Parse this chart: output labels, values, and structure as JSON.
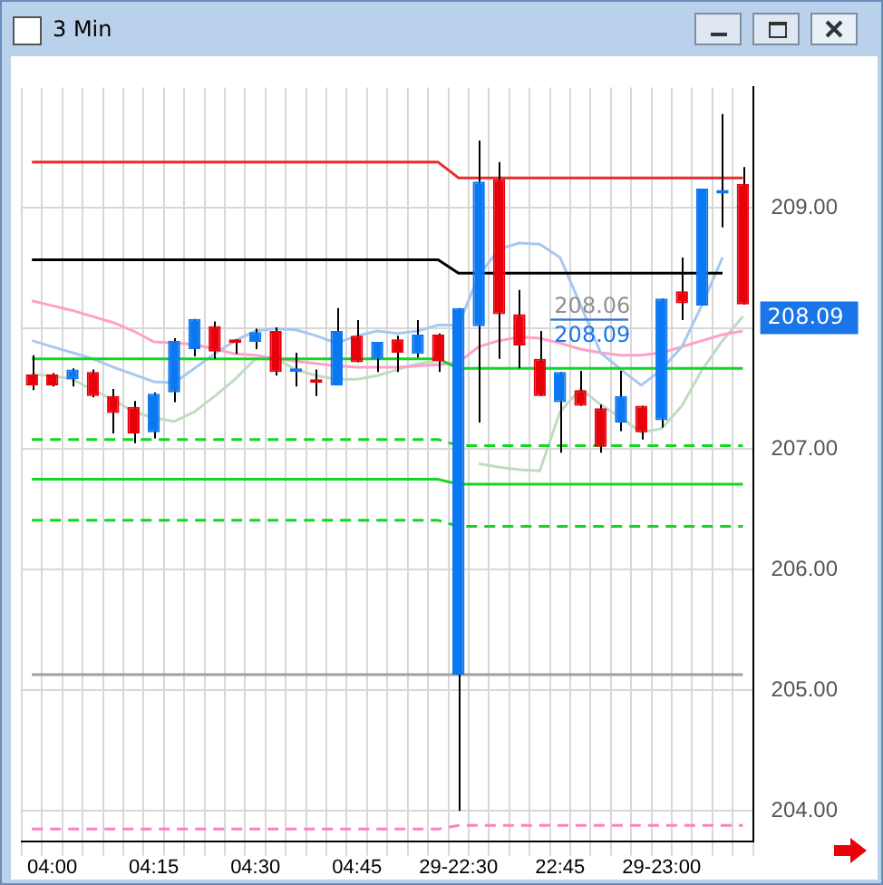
{
  "chart_data": {
    "type": "candlestick",
    "title": "3 Min",
    "categories": [
      null,
      "04:00",
      null,
      null,
      null,
      null,
      "04:15",
      null,
      null,
      null,
      null,
      "04:30",
      null,
      null,
      null,
      null,
      "04:45",
      null,
      null,
      null,
      null,
      "29-22:30",
      null,
      null,
      null,
      null,
      "22:45",
      null,
      null,
      null,
      null,
      "29-23:00",
      null,
      null,
      null,
      null
    ],
    "ohlc": [
      [
        207.62,
        207.78,
        207.49,
        207.53
      ],
      [
        207.62,
        207.63,
        207.52,
        207.53
      ],
      [
        207.58,
        207.67,
        207.52,
        207.66
      ],
      [
        207.64,
        207.66,
        207.43,
        207.44
      ],
      [
        207.44,
        207.5,
        207.13,
        207.3
      ],
      [
        207.35,
        207.4,
        207.05,
        207.13
      ],
      [
        207.14,
        207.47,
        207.09,
        207.46
      ],
      [
        207.47,
        207.92,
        207.39,
        207.9
      ],
      [
        207.83,
        208.08,
        207.77,
        208.08
      ],
      [
        208.02,
        208.06,
        207.75,
        207.81
      ],
      [
        207.89,
        207.91,
        207.79,
        207.88
      ],
      [
        207.89,
        208.0,
        207.83,
        207.97
      ],
      [
        207.98,
        208.01,
        207.61,
        207.64
      ],
      [
        207.64,
        207.8,
        207.52,
        207.67
      ],
      [
        207.58,
        207.66,
        207.44,
        207.55
      ],
      [
        207.53,
        208.17,
        207.53,
        207.98
      ],
      [
        207.94,
        208.07,
        207.72,
        207.72
      ],
      [
        207.75,
        207.89,
        207.64,
        207.89
      ],
      [
        207.91,
        207.94,
        207.64,
        207.8
      ],
      [
        207.79,
        208.07,
        207.76,
        207.95
      ],
      [
        207.95,
        207.96,
        207.64,
        207.73
      ],
      [
        205.13,
        208.17,
        204.0,
        208.17
      ],
      [
        208.02,
        209.56,
        207.22,
        209.22
      ],
      [
        209.24,
        209.38,
        207.75,
        208.12
      ],
      [
        208.12,
        208.32,
        207.67,
        207.86
      ],
      [
        207.75,
        207.98,
        207.44,
        207.44
      ],
      [
        207.39,
        207.64,
        206.97,
        207.64
      ],
      [
        207.49,
        207.65,
        207.36,
        207.36
      ],
      [
        207.34,
        207.37,
        206.97,
        207.02
      ],
      [
        207.22,
        207.65,
        207.15,
        207.44
      ],
      [
        207.36,
        207.36,
        207.08,
        207.14
      ],
      [
        207.24,
        208.25,
        207.18,
        208.25
      ],
      [
        208.31,
        208.59,
        208.07,
        208.21
      ],
      [
        208.19,
        209.16,
        208.19,
        209.16
      ],
      [
        209.12,
        209.78,
        208.84,
        209.15
      ],
      [
        209.2,
        209.34,
        208.2,
        208.2
      ]
    ],
    "colors": [
      "#e8000b",
      "#e8000b",
      "#0a78f0",
      "#e8000b",
      "#e8000b",
      "#e8000b",
      "#0a78f0",
      "#0a78f0",
      "#0a78f0",
      "#e8000b",
      "#e8000b",
      "#0a78f0",
      "#e8000b",
      "#0a78f0",
      "#e8000b",
      "#0a78f0",
      "#e8000b",
      "#0a78f0",
      "#e8000b",
      "#0a78f0",
      "#e8000b",
      "#0a78f0",
      "#0a78f0",
      "#e8000b",
      "#e8000b",
      "#e8000b",
      "#0a78f0",
      "#e8000b",
      "#e8000b",
      "#0a78f0",
      "#e8000b",
      "#0a78f0",
      "#e8000b",
      "#0a78f0",
      "#0a78f0",
      "#e8000b"
    ],
    "series": [
      {
        "type": "line",
        "color": "#ec2a2a",
        "line_style": "solid",
        "values": [
          209.38,
          209.38,
          209.38,
          209.38,
          209.38,
          209.38,
          209.38,
          209.38,
          209.38,
          209.38,
          209.38,
          209.38,
          209.38,
          209.38,
          209.38,
          209.38,
          209.38,
          209.38,
          209.38,
          209.38,
          209.38,
          209.25,
          209.25,
          209.25,
          209.25,
          209.25,
          209.25,
          209.25,
          209.25,
          209.25,
          209.25,
          209.25,
          209.25,
          209.25,
          209.25,
          209.25
        ]
      },
      {
        "type": "line",
        "color": "#000000",
        "line_style": "solid",
        "values": [
          208.57,
          208.57,
          208.57,
          208.57,
          208.57,
          208.57,
          208.57,
          208.57,
          208.57,
          208.57,
          208.57,
          208.57,
          208.57,
          208.57,
          208.57,
          208.57,
          208.57,
          208.57,
          208.57,
          208.57,
          208.57,
          208.46,
          208.46,
          208.46,
          208.46,
          208.46,
          208.46,
          208.46,
          208.46,
          208.46,
          208.46,
          208.46,
          208.46,
          208.46,
          208.46,
          null
        ]
      },
      {
        "type": "line",
        "color": "#10d820",
        "line_style": "solid",
        "values": [
          207.75,
          207.75,
          207.75,
          207.75,
          207.75,
          207.75,
          207.75,
          207.75,
          207.75,
          207.75,
          207.75,
          207.75,
          207.75,
          207.75,
          207.75,
          207.75,
          207.75,
          207.75,
          207.75,
          207.75,
          207.75,
          207.67,
          207.67,
          207.67,
          207.67,
          207.67,
          207.67,
          207.67,
          207.67,
          207.67,
          207.67,
          207.67,
          207.67,
          207.67,
          207.67,
          207.67
        ]
      },
      {
        "type": "line",
        "color": "#10d820",
        "line_style": "dashed",
        "values": [
          207.08,
          207.08,
          207.08,
          207.08,
          207.08,
          207.08,
          207.08,
          207.08,
          207.08,
          207.08,
          207.08,
          207.08,
          207.08,
          207.08,
          207.08,
          207.08,
          207.08,
          207.08,
          207.08,
          207.08,
          207.08,
          207.03,
          207.03,
          207.03,
          207.03,
          207.03,
          207.03,
          207.03,
          207.03,
          207.03,
          207.03,
          207.03,
          207.03,
          207.03,
          207.03,
          207.03
        ]
      },
      {
        "type": "line",
        "color": "#10d820",
        "line_style": "solid",
        "values": [
          206.75,
          206.75,
          206.75,
          206.75,
          206.75,
          206.75,
          206.75,
          206.75,
          206.75,
          206.75,
          206.75,
          206.75,
          206.75,
          206.75,
          206.75,
          206.75,
          206.75,
          206.75,
          206.75,
          206.75,
          206.75,
          206.71,
          206.71,
          206.71,
          206.71,
          206.71,
          206.71,
          206.71,
          206.71,
          206.71,
          206.71,
          206.71,
          206.71,
          206.71,
          206.71,
          206.71
        ]
      },
      {
        "type": "line",
        "color": "#10d820",
        "line_style": "dashed",
        "values": [
          206.41,
          206.41,
          206.41,
          206.41,
          206.41,
          206.41,
          206.41,
          206.41,
          206.41,
          206.41,
          206.41,
          206.41,
          206.41,
          206.41,
          206.41,
          206.41,
          206.41,
          206.41,
          206.41,
          206.41,
          206.41,
          206.36,
          206.36,
          206.36,
          206.36,
          206.36,
          206.36,
          206.36,
          206.36,
          206.36,
          206.36,
          206.36,
          206.36,
          206.36,
          206.36,
          206.36
        ]
      },
      {
        "type": "line",
        "color": "#a0a0a0",
        "line_style": "solid",
        "values": [
          205.13,
          205.13,
          205.13,
          205.13,
          205.13,
          205.13,
          205.13,
          205.13,
          205.13,
          205.13,
          205.13,
          205.13,
          205.13,
          205.13,
          205.13,
          205.13,
          205.13,
          205.13,
          205.13,
          205.13,
          205.13,
          205.13,
          205.13,
          205.13,
          205.13,
          205.13,
          205.13,
          205.13,
          205.13,
          205.13,
          205.13,
          205.13,
          205.13,
          205.13,
          205.13,
          205.13
        ]
      },
      {
        "type": "line",
        "color": "#ff80c0",
        "line_style": "dashed",
        "values": [
          203.85,
          203.85,
          203.85,
          203.85,
          203.85,
          203.85,
          203.85,
          203.85,
          203.85,
          203.85,
          203.85,
          203.85,
          203.85,
          203.85,
          203.85,
          203.85,
          203.85,
          203.85,
          203.85,
          203.85,
          203.85,
          203.88,
          203.88,
          203.88,
          203.88,
          203.88,
          203.88,
          203.88,
          203.88,
          203.88,
          203.88,
          203.88,
          203.88,
          203.88,
          203.88,
          203.88
        ]
      },
      {
        "type": "line",
        "color": "#a8c8f0",
        "line_style": "solid",
        "values": [
          207.9,
          207.85,
          207.8,
          207.75,
          207.68,
          207.62,
          207.56,
          207.55,
          207.67,
          207.79,
          207.9,
          207.98,
          208.0,
          207.99,
          207.94,
          207.88,
          207.94,
          207.98,
          207.96,
          207.98,
          208.03,
          208.03,
          208.44,
          208.66,
          208.71,
          208.7,
          208.59,
          208.2,
          207.8,
          207.66,
          207.53,
          207.66,
          207.85,
          208.2,
          208.59,
          null
        ]
      },
      {
        "type": "line",
        "color": "#ffa0c8",
        "line_style": "solid",
        "values": [
          208.23,
          208.19,
          208.15,
          208.1,
          208.05,
          207.98,
          207.89,
          207.88,
          207.87,
          207.83,
          207.79,
          207.78,
          207.75,
          207.73,
          207.71,
          207.69,
          207.68,
          207.68,
          207.68,
          207.69,
          207.7,
          207.72,
          207.85,
          207.9,
          207.93,
          207.92,
          207.88,
          207.83,
          207.8,
          207.78,
          207.78,
          207.8,
          207.85,
          207.9,
          207.95,
          207.98
        ]
      },
      {
        "type": "line",
        "color": "#c0dcc0",
        "line_style": "solid",
        "values": [
          207.62,
          207.61,
          207.58,
          207.49,
          207.41,
          207.31,
          207.26,
          207.23,
          207.31,
          207.44,
          207.58,
          207.75,
          207.75,
          207.66,
          207.61,
          207.58,
          207.58,
          207.61,
          207.66,
          207.71,
          207.73,
          null,
          206.88,
          206.85,
          206.83,
          206.82,
          207.31,
          207.5,
          207.37,
          207.26,
          207.14,
          207.17,
          207.36,
          207.66,
          207.9,
          208.1
        ]
      }
    ],
    "ylim": [
      203.75,
      210.0
    ],
    "yticks": [
      {
        "value": 204,
        "label": "204.00"
      },
      {
        "value": 205,
        "label": "205.00"
      },
      {
        "value": 206,
        "label": "206.00"
      },
      {
        "value": 207,
        "label": "207.00"
      },
      {
        "value": 208,
        "label": null
      },
      {
        "value": 209,
        "label": "209.00"
      }
    ],
    "ref_lines": [
      {
        "axis": "y",
        "value": 208.09,
        "label": "208.09",
        "color": "#1a75e8"
      }
    ],
    "annotations": [
      {
        "text": "208.06",
        "y": 208.06
      }
    ],
    "marker": "none",
    "grid": true,
    "legend": false
  }
}
